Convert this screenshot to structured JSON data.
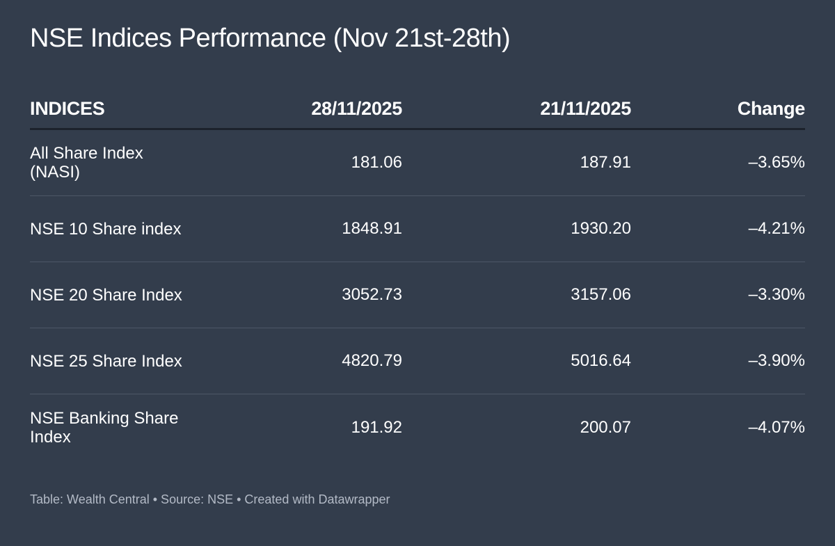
{
  "header": {
    "title": "NSE Indices Performance (Nov 21st-28th)"
  },
  "table": {
    "columns": [
      "INDICES",
      "28/11/2025",
      "21/11/2025",
      "Change"
    ],
    "rows": [
      [
        "All Share Index (NASI)",
        "181.06",
        "187.91",
        "–3.65%"
      ],
      [
        "NSE 10 Share index",
        "1848.91",
        "1930.20",
        "–4.21%"
      ],
      [
        "NSE 20 Share Index",
        "3052.73",
        "3157.06",
        "–3.30%"
      ],
      [
        "NSE 25 Share Index",
        "4820.79",
        "5016.64",
        "–3.90%"
      ],
      [
        "NSE Banking Share Index",
        "191.92",
        "200.07",
        "–4.07%"
      ]
    ]
  },
  "footer": {
    "text": "Table: Wealth Central • Source: NSE • Created with Datawrapper"
  }
}
